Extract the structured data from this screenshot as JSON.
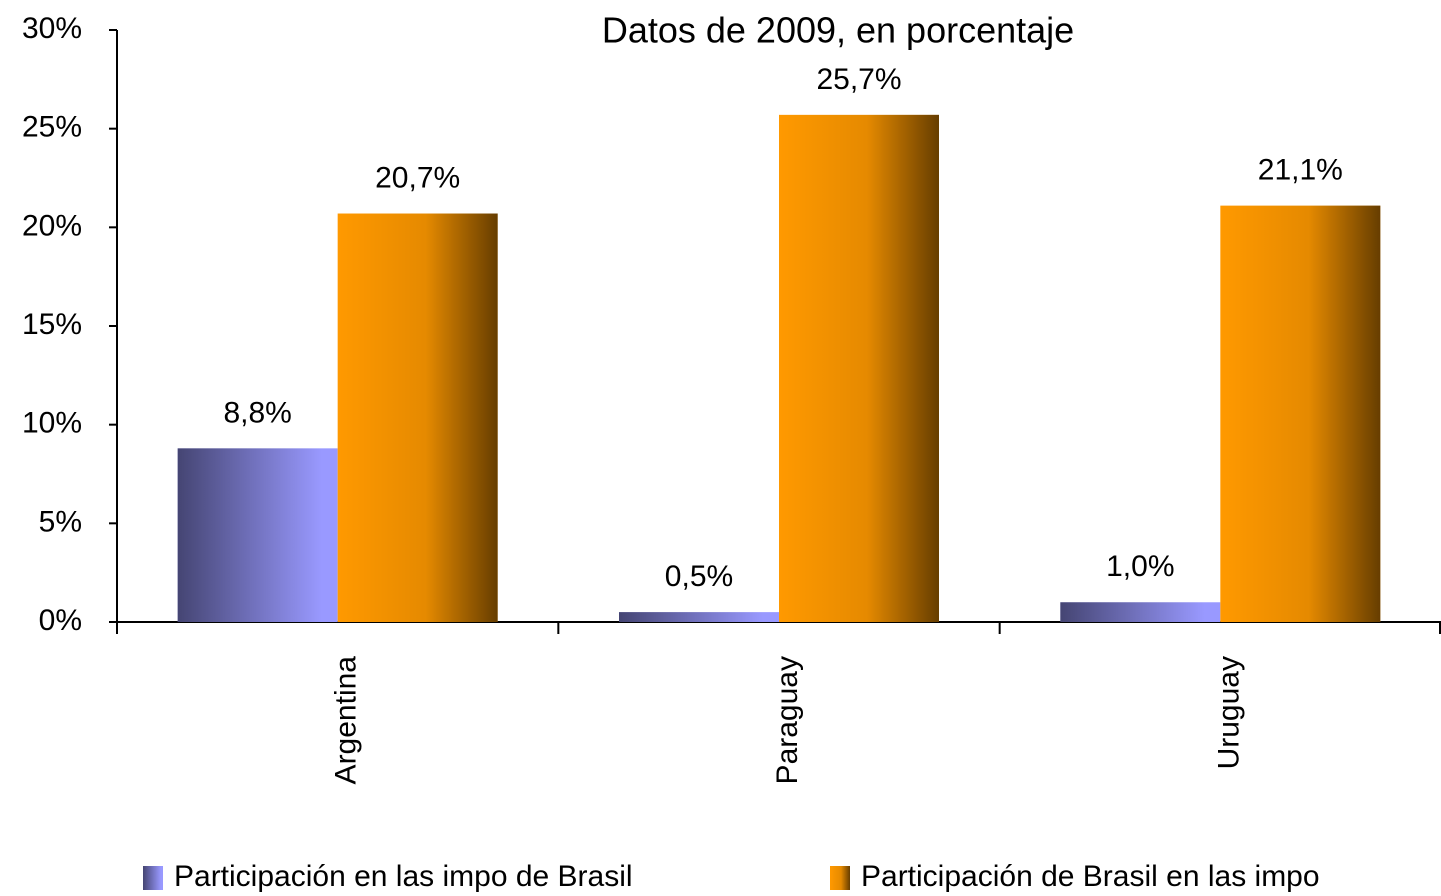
{
  "chart_data": {
    "type": "bar",
    "title": "Datos de 2009, en porcentaje",
    "categories": [
      "Argentina",
      "Paraguay",
      "Uruguay"
    ],
    "series": [
      {
        "name": "Participación en las impo de Brasil",
        "color": "#9999ff",
        "values": [
          8.8,
          0.5,
          1.0
        ],
        "value_labels": [
          "8,8%",
          "0,5%",
          "1,0%"
        ]
      },
      {
        "name": "Participación de Brasil en las impo",
        "color": "#ff9900",
        "values": [
          20.7,
          25.7,
          21.1
        ],
        "value_labels": [
          "20,7%",
          "25,7%",
          "21,1%"
        ]
      }
    ],
    "ylim": [
      0,
      30
    ],
    "yticks": [
      {
        "value": 0,
        "label": "0%"
      },
      {
        "value": 5,
        "label": "5%"
      },
      {
        "value": 10,
        "label": "10%"
      },
      {
        "value": 15,
        "label": "15%"
      },
      {
        "value": 20,
        "label": "20%"
      },
      {
        "value": 25,
        "label": "25%"
      },
      {
        "value": 30,
        "label": "30%"
      }
    ],
    "legend": "bottom"
  }
}
